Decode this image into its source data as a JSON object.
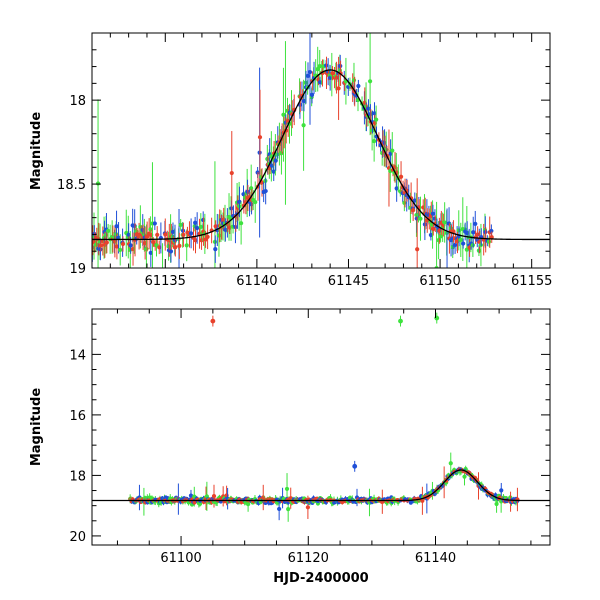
{
  "chart_data": [
    {
      "type": "scatter",
      "panel": "top",
      "ylabel": "Magnitude",
      "xlabel": "",
      "xlim": [
        61131,
        61156
      ],
      "ylim": [
        19.0,
        17.6
      ],
      "x_ticks": [
        61135,
        61140,
        61145,
        61150,
        61155
      ],
      "x_tick_labels": [
        "61135",
        "61140",
        "61145",
        "61150",
        "61155"
      ],
      "y_ticks": [
        18.0,
        18.5,
        19.0
      ],
      "y_tick_labels": [
        "18",
        "18.5",
        "19"
      ],
      "model_curve": {
        "baseline": 18.83,
        "peak_mag": 17.82,
        "peak_time": 61144.0,
        "width": 2.6
      },
      "series": [
        {
          "name": "red",
          "color": "#e8422c"
        },
        {
          "name": "green",
          "color": "#3ee23e"
        },
        {
          "name": "blue",
          "color": "#1f4fd8"
        }
      ]
    },
    {
      "type": "scatter",
      "panel": "bottom",
      "ylabel": "Magnitude",
      "xlabel": "HJD-2400000",
      "xlim": [
        61086,
        61158
      ],
      "ylim": [
        20.3,
        12.5
      ],
      "x_ticks": [
        61100,
        61120,
        61140
      ],
      "x_tick_labels": [
        "61100",
        "61120",
        "61140"
      ],
      "y_ticks": [
        14,
        16,
        18,
        20
      ],
      "y_tick_labels": [
        "14",
        "16",
        "18",
        "20"
      ],
      "model_curve": {
        "baseline": 18.83,
        "peak_mag": 17.82,
        "peak_time": 61144.0,
        "width": 2.6
      },
      "outliers": [
        {
          "x": 61105.0,
          "y": 12.9,
          "series": "red"
        },
        {
          "x": 61134.5,
          "y": 12.9,
          "series": "green"
        },
        {
          "x": 61140.2,
          "y": 12.8,
          "series": "green"
        },
        {
          "x": 61127.3,
          "y": 17.7,
          "series": "blue"
        }
      ],
      "series": [
        {
          "name": "red",
          "color": "#e8422c"
        },
        {
          "name": "green",
          "color": "#3ee23e"
        },
        {
          "name": "blue",
          "color": "#1f4fd8"
        }
      ]
    }
  ]
}
